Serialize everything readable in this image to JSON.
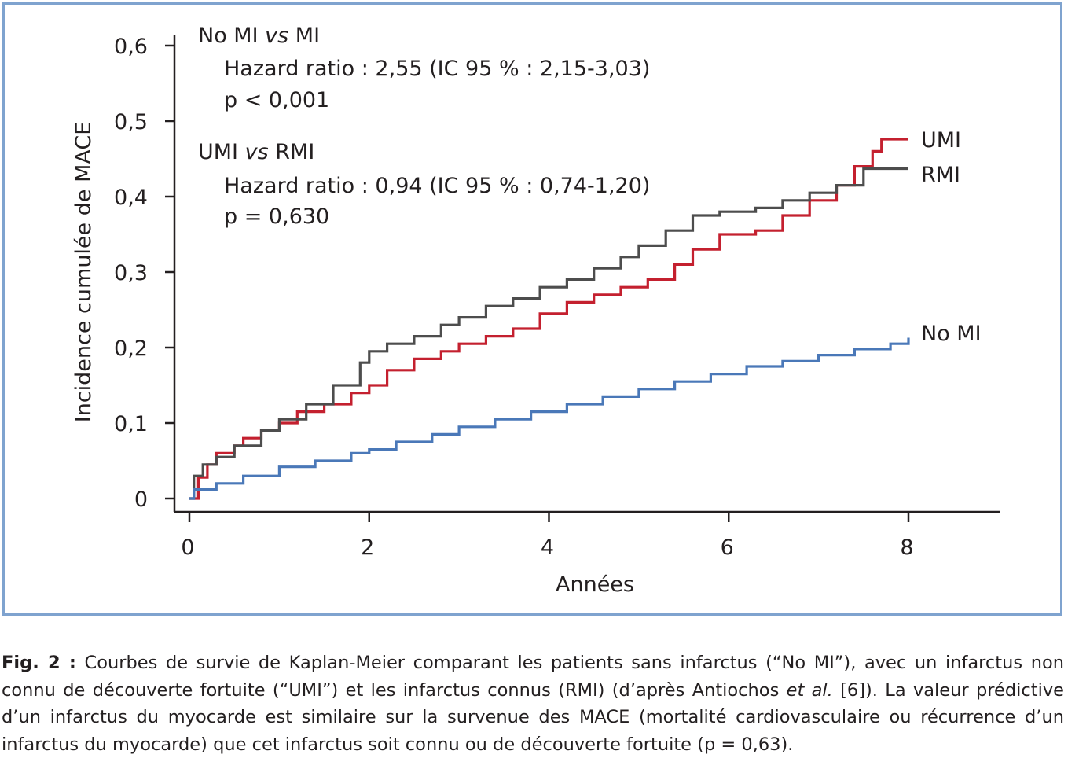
{
  "annotations": {
    "comparison1": {
      "left": "No MI",
      "vs": "vs",
      "right": "MI",
      "hr": "Hazard ratio : 2,55 (IC 95 % : 2,15-3,03)",
      "p": "p < 0,001"
    },
    "comparison2": {
      "left": "UMI",
      "vs": "vs",
      "right": "RMI",
      "hr": "Hazard ratio : 0,94 (IC 95 % : 0,74-1,20)",
      "p": "p = 0,630"
    }
  },
  "caption": {
    "label": "Fig. 2 :",
    "text1": " Courbes de survie de Kaplan-Meier comparant les patients sans infarctus (“No MI”), avec un infarctus non connu de découverte fortuite (“UMI”) et les infarctus connus (RMI) (d’après Antiochos ",
    "italic": "et al.",
    "text2": " [6]). La valeur prédictive d’un infarctus du myocarde est similaire sur la survenue des MACE (mortalité cardiovasculaire ou récurrence d’un infarctus du myocarde) que cet infarctus soit connu ou de découverte fortuite (p = 0,63)."
  },
  "chart_data": {
    "type": "line",
    "title": "",
    "xlabel": "Années",
    "ylabel": "Incidence cumulée de MACE",
    "xlim": [
      0,
      9
    ],
    "ylim": [
      0,
      0.6
    ],
    "x_ticks": [
      0,
      2,
      4,
      6,
      8
    ],
    "x_tick_labels": [
      "0",
      "2",
      "4",
      "6",
      "8"
    ],
    "y_ticks": [
      0,
      0.1,
      0.2,
      0.3,
      0.4,
      0.5,
      0.6
    ],
    "y_tick_labels": [
      "0",
      "0,1",
      "0,2",
      "0,3",
      "0,4",
      "0,5",
      "0,6"
    ],
    "grid": false,
    "legend": "inline labels at line ends (right)",
    "series": [
      {
        "name": "UMI",
        "color": "#c4202f",
        "x": [
          0,
          0.1,
          0.2,
          0.3,
          0.5,
          0.6,
          0.8,
          1.0,
          1.2,
          1.5,
          1.8,
          2.0,
          2.2,
          2.5,
          2.8,
          3.0,
          3.3,
          3.6,
          3.9,
          4.2,
          4.5,
          4.8,
          5.1,
          5.4,
          5.6,
          5.9,
          6.3,
          6.6,
          6.9,
          7.2,
          7.4,
          7.6,
          7.7,
          8.0
        ],
        "y": [
          0,
          0.028,
          0.045,
          0.06,
          0.07,
          0.08,
          0.09,
          0.1,
          0.115,
          0.125,
          0.14,
          0.15,
          0.17,
          0.185,
          0.195,
          0.205,
          0.215,
          0.225,
          0.245,
          0.26,
          0.27,
          0.28,
          0.29,
          0.31,
          0.33,
          0.35,
          0.355,
          0.375,
          0.395,
          0.415,
          0.44,
          0.46,
          0.476,
          0.476
        ]
      },
      {
        "name": "RMI",
        "color": "#4d4d4d",
        "x": [
          0,
          0.05,
          0.15,
          0.3,
          0.5,
          0.8,
          1.0,
          1.3,
          1.6,
          1.9,
          2.0,
          2.2,
          2.5,
          2.8,
          3.0,
          3.3,
          3.6,
          3.9,
          4.2,
          4.5,
          4.8,
          5.0,
          5.3,
          5.6,
          5.9,
          6.3,
          6.6,
          6.9,
          7.2,
          7.5,
          8.0
        ],
        "y": [
          0,
          0.03,
          0.045,
          0.055,
          0.07,
          0.09,
          0.105,
          0.125,
          0.15,
          0.18,
          0.195,
          0.205,
          0.215,
          0.23,
          0.24,
          0.255,
          0.265,
          0.28,
          0.29,
          0.305,
          0.32,
          0.335,
          0.355,
          0.375,
          0.38,
          0.385,
          0.395,
          0.405,
          0.415,
          0.437,
          0.437
        ]
      },
      {
        "name": "No MI",
        "color": "#4a78b8",
        "x": [
          0,
          0.05,
          0.3,
          0.6,
          1.0,
          1.4,
          1.8,
          2.0,
          2.3,
          2.7,
          3.0,
          3.4,
          3.8,
          4.2,
          4.6,
          5.0,
          5.4,
          5.8,
          6.2,
          6.6,
          7.0,
          7.4,
          7.8,
          8.0
        ],
        "y": [
          0,
          0.012,
          0.02,
          0.03,
          0.042,
          0.05,
          0.06,
          0.065,
          0.075,
          0.085,
          0.095,
          0.105,
          0.115,
          0.125,
          0.135,
          0.145,
          0.155,
          0.165,
          0.175,
          0.182,
          0.19,
          0.198,
          0.205,
          0.213
        ]
      }
    ]
  }
}
